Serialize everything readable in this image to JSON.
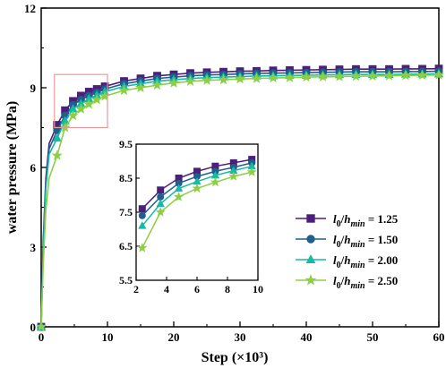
{
  "chart_data": {
    "type": "line",
    "xlabel": "Step (×10³)",
    "ylabel": "water pressure (MPa)",
    "xlim": [
      0,
      60
    ],
    "ylim": [
      0,
      12
    ],
    "xticks": [
      "0",
      "10",
      "20",
      "30",
      "40",
      "50",
      "60"
    ],
    "yticks": [
      "0",
      "3",
      "6",
      "9",
      "12"
    ],
    "grid": false,
    "legend_position": "right",
    "series": [
      {
        "name": "l0/hmin = 1.25",
        "color": "#4b1f7a",
        "marker": "square",
        "x": [
          0,
          0.3,
          0.7,
          1.2,
          2.4,
          3.6,
          4.8,
          6.0,
          7.2,
          8.4,
          9.6,
          12.5,
          15,
          17.5,
          20,
          22.5,
          25,
          27.5,
          30,
          32.5,
          35,
          37.5,
          40,
          42.5,
          45,
          47.5,
          50,
          52.5,
          55,
          57.5,
          60
        ],
        "y": [
          0,
          3.2,
          5.6,
          6.9,
          7.6,
          8.15,
          8.5,
          8.7,
          8.85,
          8.95,
          9.05,
          9.25,
          9.35,
          9.45,
          9.5,
          9.55,
          9.58,
          9.6,
          9.62,
          9.63,
          9.65,
          9.66,
          9.67,
          9.68,
          9.69,
          9.7,
          9.7,
          9.7,
          9.71,
          9.71,
          9.72
        ]
      },
      {
        "name": "l0/hmin = 1.50",
        "color": "#1f5f8b",
        "marker": "circle",
        "x": [
          0,
          0.3,
          0.7,
          1.2,
          2.4,
          3.6,
          4.8,
          6.0,
          7.2,
          8.4,
          9.6,
          12.5,
          15,
          17.5,
          20,
          22.5,
          25,
          27.5,
          30,
          32.5,
          35,
          37.5,
          40,
          42.5,
          45,
          47.5,
          50,
          52.5,
          55,
          57.5,
          60
        ],
        "y": [
          0,
          3.0,
          5.4,
          6.7,
          7.4,
          7.95,
          8.35,
          8.55,
          8.7,
          8.82,
          8.95,
          9.15,
          9.25,
          9.35,
          9.4,
          9.45,
          9.48,
          9.5,
          9.52,
          9.54,
          9.55,
          9.56,
          9.57,
          9.58,
          9.59,
          9.6,
          9.6,
          9.6,
          9.61,
          9.61,
          9.62
        ]
      },
      {
        "name": "l0/hmin = 2.00",
        "color": "#16b8a6",
        "marker": "triangle",
        "x": [
          0,
          0.3,
          0.7,
          1.2,
          2.4,
          3.6,
          4.8,
          6.0,
          7.2,
          8.4,
          9.6,
          12.5,
          15,
          17.5,
          20,
          22.5,
          25,
          27.5,
          30,
          32.5,
          35,
          37.5,
          40,
          42.5,
          45,
          47.5,
          50,
          52.5,
          55,
          57.5,
          60
        ],
        "y": [
          0,
          2.8,
          5.2,
          6.5,
          7.1,
          7.75,
          8.2,
          8.4,
          8.58,
          8.72,
          8.85,
          9.05,
          9.15,
          9.25,
          9.3,
          9.35,
          9.38,
          9.4,
          9.42,
          9.44,
          9.45,
          9.46,
          9.47,
          9.48,
          9.49,
          9.5,
          9.5,
          9.5,
          9.51,
          9.51,
          9.52
        ]
      },
      {
        "name": "l0/hmin = 2.50",
        "color": "#8ccf45",
        "marker": "star",
        "x": [
          0,
          0.3,
          0.7,
          1.2,
          2.4,
          3.6,
          4.8,
          6.0,
          7.2,
          8.4,
          9.6,
          12.5,
          15,
          17.5,
          20,
          22.5,
          25,
          27.5,
          30,
          32.5,
          35,
          37.5,
          40,
          42.5,
          45,
          47.5,
          50,
          52.5,
          55,
          57.5,
          60
        ],
        "y": [
          0,
          2.3,
          4.4,
          5.6,
          6.45,
          7.5,
          7.95,
          8.2,
          8.38,
          8.55,
          8.68,
          8.9,
          9.0,
          9.1,
          9.18,
          9.24,
          9.28,
          9.3,
          9.33,
          9.35,
          9.37,
          9.38,
          9.4,
          9.41,
          9.42,
          9.43,
          9.44,
          9.45,
          9.46,
          9.47,
          9.48
        ]
      }
    ],
    "inset": {
      "xlim": [
        2,
        10
      ],
      "ylim": [
        5.5,
        9.5
      ],
      "xticks": [
        "2",
        "4",
        "6",
        "8",
        "10"
      ],
      "yticks": [
        "5.5",
        "6.5",
        "7.5",
        "8.5",
        "9.5"
      ]
    },
    "zoom_box": {
      "x": [
        2,
        10
      ],
      "y": [
        7.5,
        9.5
      ],
      "color": "#e89a9a"
    }
  }
}
